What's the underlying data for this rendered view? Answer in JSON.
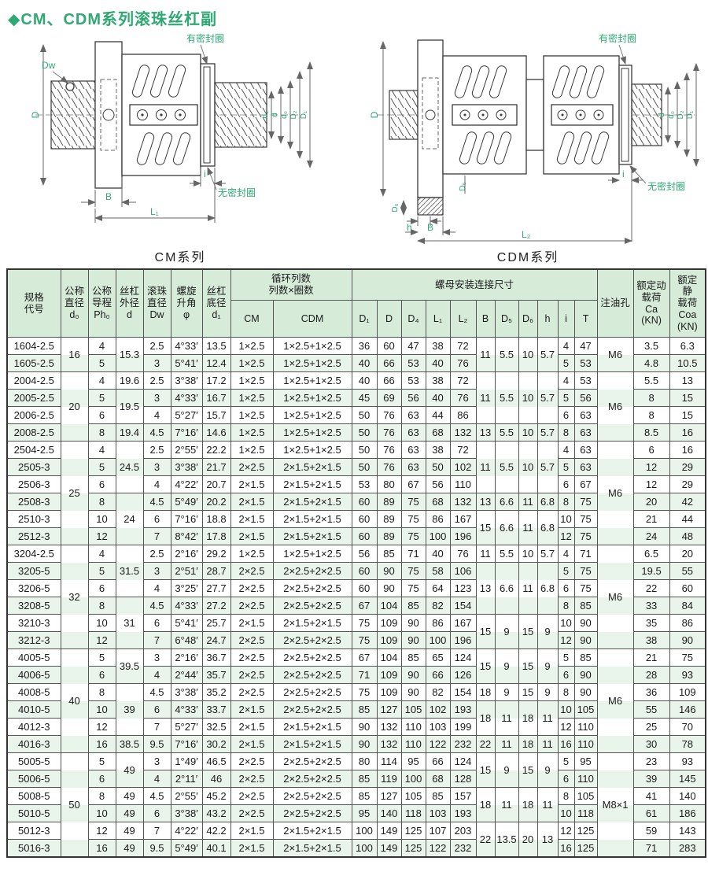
{
  "page": {
    "title": "◆CM、CDM系列滚珠丝杠副"
  },
  "colors": {
    "accent_green": "#2fa874",
    "header_bg": "#d6ecd9",
    "stripe_green": "#e9f4eb",
    "grid": "#555555"
  },
  "diagrams": {
    "left": {
      "caption": "CM系列",
      "labels": {
        "dw": "Dw",
        "D": "D",
        "seal_top": "有密封圈",
        "seal_bottom": "无密封圈",
        "i": "i",
        "B": "B",
        "L1": "L₁",
        "d1": "d₁",
        "d": "d",
        "d0": "d₀",
        "D2": "D₂",
        "D1": "D₁"
      }
    },
    "right": {
      "caption": "CDM系列",
      "labels": {
        "D": "D",
        "seal_top": "有密封圈",
        "seal_bottom": "无密封圈",
        "D6": "D₆",
        "h": "h",
        "B": "B",
        "D5": "D₅",
        "L2": "L₂",
        "i": "i",
        "d": "d",
        "d0": "d₀",
        "D2": "D₂",
        "D1": "D₁"
      }
    }
  },
  "table": {
    "header_row1": [
      {
        "v": "规格\n代号",
        "rs": 2
      },
      {
        "v": "公称\n直径\nd₀",
        "rs": 2
      },
      {
        "v": "公称\n导程\nPh₀",
        "rs": 2
      },
      {
        "v": "丝杠\n外径\nd",
        "rs": 2
      },
      {
        "v": "滚珠\n直径\nDw",
        "rs": 2
      },
      {
        "v": "螺旋\n升角\nφ",
        "rs": 2
      },
      {
        "v": "丝杠\n底径\nd₁",
        "rs": 2
      },
      {
        "v": "循环列数\n列数×圈数",
        "cs": 2
      },
      {
        "v": "螺母安装连接尺寸",
        "cs": 11
      },
      {
        "v": "注油孔",
        "rs": 2
      },
      {
        "v": "额定动\n载荷\nCa\n(KN)",
        "rs": 2
      },
      {
        "v": "额定\n静\n载荷\nCoa\n(KN)",
        "rs": 2
      }
    ],
    "header_row2": [
      "CM",
      "CDM",
      "D₁",
      "D",
      "D₄",
      "L₁",
      "L₂",
      "B",
      "D₅",
      "D₆",
      "h",
      "i",
      "T"
    ],
    "rows": [
      [
        "1604-2.5",
        {
          "v": "16",
          "rs": 2
        },
        "4",
        {
          "v": "15.3",
          "rs": 2
        },
        "2.5",
        "4°33′",
        "13.5",
        "1×2.5",
        "1×2.5+1×2.5",
        "36",
        "60",
        "47",
        "38",
        "72",
        {
          "v": "11",
          "rs": 2
        },
        {
          "v": "5.5",
          "rs": 2
        },
        {
          "v": "10",
          "rs": 2
        },
        {
          "v": "5.7",
          "rs": 2
        },
        "4",
        "47",
        {
          "v": "M6",
          "rs": 2
        },
        "3.5",
        "6.3"
      ],
      [
        "1605-2.5",
        "5",
        "3",
        "5°41′",
        "12.4",
        "1×2.5",
        "1×2.5+1×2.5",
        "40",
        "66",
        "53",
        "40",
        "76",
        "5",
        "53",
        "4.8",
        "10.5"
      ],
      [
        "2004-2.5",
        {
          "v": "20",
          "rs": 4
        },
        "4",
        "19.6",
        "2.5",
        "3°38′",
        "17.2",
        "1×2.5",
        "1×2.5+1×2.5",
        "40",
        "66",
        "53",
        "38",
        "72",
        {
          "v": "11",
          "rs": 3
        },
        {
          "v": "5.5",
          "rs": 3
        },
        {
          "v": "10",
          "rs": 3
        },
        {
          "v": "5.7",
          "rs": 3
        },
        "4",
        "53",
        {
          "v": "M6",
          "rs": 4
        },
        "5.5",
        "13"
      ],
      [
        "2005-2.5",
        "5",
        {
          "v": "19.5",
          "rs": 2
        },
        "3",
        "4°33′",
        "16.7",
        "1×2.5",
        "1×2.5+1×2.5",
        "45",
        "69",
        "56",
        "40",
        "76",
        "5",
        "56",
        "8",
        "15"
      ],
      [
        "2006-2.5",
        "6",
        "4",
        "5°27′",
        "15.7",
        "1×2.5",
        "1×2.5+1×2.5",
        "50",
        "76",
        "63",
        "44",
        "86",
        "6",
        "63",
        "8",
        "15"
      ],
      [
        "2008-2.5",
        "8",
        "19.4",
        "4.5",
        "7°16′",
        "14.6",
        "1×2.5",
        "1×2.5+1×2.5",
        "50",
        "76",
        "63",
        "68",
        "132",
        "13",
        "5.5",
        "10",
        "5.7",
        "8",
        "63",
        "8.5",
        "16"
      ],
      [
        "2504-2.5",
        {
          "v": "25",
          "rs": 6
        },
        "4",
        {
          "v": "24.5",
          "rs": 3
        },
        "2.5",
        "2°55′",
        "22.2",
        "1×2.5",
        "1×2.5+1×2.5",
        "50",
        "76",
        "63",
        "38",
        "72",
        {
          "v": "11",
          "rs": 3
        },
        {
          "v": "5.5",
          "rs": 3
        },
        {
          "v": "10",
          "rs": 3
        },
        {
          "v": "5.7",
          "rs": 3
        },
        "4",
        "63",
        {
          "v": "M6",
          "rs": 6
        },
        "6",
        "16"
      ],
      [
        "2505-3",
        "5",
        "3",
        "3°38′",
        "21.7",
        "2×2.5",
        "2×1.5+2×1.5",
        "50",
        "76",
        "63",
        "50",
        "102",
        "5",
        "63",
        "12",
        "29"
      ],
      [
        "2506-3",
        "6",
        "4",
        "4°22′",
        "20.7",
        "2×1.5",
        "2×1.5+2×1.5",
        "53",
        "80",
        "67",
        "56",
        "110",
        "6",
        "67",
        "12",
        "29"
      ],
      [
        "2508-3",
        "8",
        {
          "v": "24",
          "rs": 3
        },
        "4.5",
        "5°49′",
        "20.2",
        "2×1.5",
        "2×1.5+2×1.5",
        "60",
        "89",
        "75",
        "68",
        "132",
        "13",
        "6.6",
        "11",
        "6.8",
        "8",
        "75",
        "20",
        "42"
      ],
      [
        "2510-3",
        "10",
        "6",
        "7°16′",
        "18.8",
        "2×1.5",
        "2×1.5+2×1.5",
        "60",
        "89",
        "75",
        "86",
        "167",
        {
          "v": "15",
          "rs": 2
        },
        {
          "v": "6.6",
          "rs": 2
        },
        {
          "v": "11",
          "rs": 2
        },
        {
          "v": "6.8",
          "rs": 2
        },
        "10",
        "75",
        "21",
        "44"
      ],
      [
        "2512-3",
        "12",
        "7",
        "8°42′",
        "17.8",
        "2×1.5",
        "2×1.5+2×1.5",
        "60",
        "89",
        "75",
        "100",
        "196",
        "12",
        "75",
        "24",
        "48"
      ],
      [
        "3204-2.5",
        {
          "v": "32",
          "rs": 6
        },
        "4",
        {
          "v": "31.5",
          "rs": 3
        },
        "2.5",
        "2°16′",
        "29.2",
        "1×2.5",
        "1×2.5+1×2.5",
        "56",
        "85",
        "71",
        "40",
        "76",
        "11",
        "5.5",
        "10",
        "5.7",
        "4",
        "71",
        {
          "v": "M6",
          "rs": 6
        },
        "6.5",
        "20"
      ],
      [
        "3205-5",
        "5",
        "3",
        "2°51′",
        "28.7",
        "2×2.5",
        "2×2.5+2×2.5",
        "60",
        "90",
        "75",
        "58",
        "106",
        {
          "v": "13",
          "rs": 3
        },
        {
          "v": "6.6",
          "rs": 3
        },
        {
          "v": "11",
          "rs": 3
        },
        {
          "v": "6.8",
          "rs": 3
        },
        "5",
        "75",
        "19.5",
        "55"
      ],
      [
        "3206-5",
        "6",
        "4",
        "3°25′",
        "27.7",
        "2×2.5",
        "2×2.5+2×2.5",
        "60",
        "90",
        "75",
        "64",
        "123",
        "6",
        "75",
        "22",
        "60"
      ],
      [
        "3208-5",
        "8",
        {
          "v": "31",
          "rs": 3
        },
        "4.5",
        "4°33′",
        "27.2",
        "2×2.5",
        "2×2.5+2×2.5",
        "67",
        "104",
        "85",
        "82",
        "154",
        "8",
        "85",
        "33",
        "84"
      ],
      [
        "3210-3",
        "10",
        "6",
        "5°41′",
        "25.7",
        "2×1.5",
        "2×1.5+2×1.5",
        "75",
        "109",
        "90",
        "86",
        "167",
        {
          "v": "15",
          "rs": 2
        },
        {
          "v": "9",
          "rs": 2
        },
        {
          "v": "15",
          "rs": 2
        },
        {
          "v": "9",
          "rs": 2
        },
        "10",
        "90",
        "35",
        "86"
      ],
      [
        "3212-3",
        "12",
        "7",
        "6°48′",
        "24.7",
        "2×2.5",
        "2×2.5+2×2.5",
        "75",
        "109",
        "90",
        "100",
        "196",
        "12",
        "90",
        "38",
        "90"
      ],
      [
        "4005-5",
        {
          "v": "40",
          "rs": 6
        },
        "5",
        {
          "v": "39.5",
          "rs": 2
        },
        "3",
        "2°16′",
        "36.7",
        "2×2.5",
        "2×2.5+2×2.5",
        "67",
        "104",
        "85",
        "65",
        "124",
        {
          "v": "15",
          "rs": 2
        },
        {
          "v": "9",
          "rs": 2
        },
        {
          "v": "15",
          "rs": 2
        },
        {
          "v": "9",
          "rs": 2
        },
        "5",
        "85",
        {
          "v": "M6",
          "rs": 6
        },
        "21",
        "75"
      ],
      [
        "4006-5",
        "6",
        "4",
        "2°44′",
        "35.7",
        "2×2.5",
        "2×2.5+2×2.5",
        "71",
        "109",
        "90",
        "66",
        "126",
        "6",
        "90",
        "28",
        "93"
      ],
      [
        "4008-5",
        "8",
        {
          "v": "39",
          "rs": 3
        },
        "4.5",
        "3°38′",
        "35.2",
        "2×2.5",
        "2×2.5+2×2.5",
        "75",
        "109",
        "90",
        "82",
        "154",
        "18",
        "9",
        "15",
        "9",
        "8",
        "90",
        "36",
        "109"
      ],
      [
        "4010-5",
        "10",
        "6",
        "4°33′",
        "33.7",
        "2×1.5",
        "2×2.5+2×2.5",
        "85",
        "127",
        "105",
        "102",
        "193",
        {
          "v": "18",
          "rs": 2
        },
        {
          "v": "11",
          "rs": 2
        },
        {
          "v": "18",
          "rs": 2
        },
        {
          "v": "11",
          "rs": 2
        },
        "10",
        "105",
        "55",
        "146"
      ],
      [
        "4012-3",
        "12",
        "7",
        "5°27′",
        "32.5",
        "2×1.5",
        "2×1.5+2×1.5",
        "90",
        "132",
        "110",
        "103",
        "199",
        "12",
        "110",
        "25",
        "70"
      ],
      [
        "4016-3",
        "16",
        "38.5",
        "9.5",
        "7°16′",
        "30.2",
        "2×1.5",
        "2×1.5+2×1.5",
        "90",
        "132",
        "110",
        "122",
        "232",
        "22",
        "11",
        "18",
        "11",
        "16",
        "110",
        "30",
        "78"
      ],
      [
        "5005-5",
        {
          "v": "50",
          "rs": 6
        },
        "5",
        {
          "v": "49",
          "rs": 2
        },
        "3",
        "1°49′",
        "46.5",
        "2×2.5",
        "2×2.5+2×2.5",
        "80",
        "114",
        "95",
        "66",
        "124",
        {
          "v": "15",
          "rs": 2
        },
        {
          "v": "9",
          "rs": 2
        },
        {
          "v": "15",
          "rs": 2
        },
        {
          "v": "9",
          "rs": 2
        },
        "5",
        "95",
        {
          "v": "M8×1",
          "rs": 6
        },
        "23",
        "93"
      ],
      [
        "5006-5",
        "6",
        "4",
        "2°11′",
        "46",
        "2×2.5",
        "2×2.5+2×2.5",
        "85",
        "119",
        "100",
        "68",
        "128",
        "6",
        "110",
        "39",
        "145"
      ],
      [
        "5008-5",
        "8",
        "49",
        "4.5",
        "2°55′",
        "45.2",
        "2×2.5",
        "2×2.5+2×2.5",
        "85",
        "127",
        "105",
        "85",
        "157",
        {
          "v": "18",
          "rs": 2
        },
        {
          "v": "11",
          "rs": 2
        },
        {
          "v": "18",
          "rs": 2
        },
        {
          "v": "11",
          "rs": 2
        },
        "8",
        "105",
        "41",
        "140"
      ],
      [
        "5010-5",
        "10",
        "49",
        "6",
        "3°38′",
        "43.2",
        "2×2.5",
        "2×2.5+2×2.5",
        "95",
        "140",
        "118",
        "103",
        "193",
        "10",
        "118",
        "61",
        "186"
      ],
      [
        "5012-3",
        "12",
        "49",
        "7",
        "4°22′",
        "42.2",
        "2×1.5",
        "2×1.5+2×1.5",
        "100",
        "149",
        "125",
        "107",
        "203",
        {
          "v": "22",
          "rs": 2
        },
        {
          "v": "13.5",
          "rs": 2
        },
        {
          "v": "20",
          "rs": 2
        },
        {
          "v": "13",
          "rs": 2
        },
        "12",
        "125",
        "59",
        "143"
      ],
      [
        "5016-3",
        "16",
        "49",
        "9.5",
        "5°49′",
        "40.1",
        "2×1.5",
        "2×1.5+2×1.5",
        "100",
        "149",
        "125",
        "122",
        "232",
        "16",
        "125",
        "71",
        "283"
      ]
    ]
  }
}
